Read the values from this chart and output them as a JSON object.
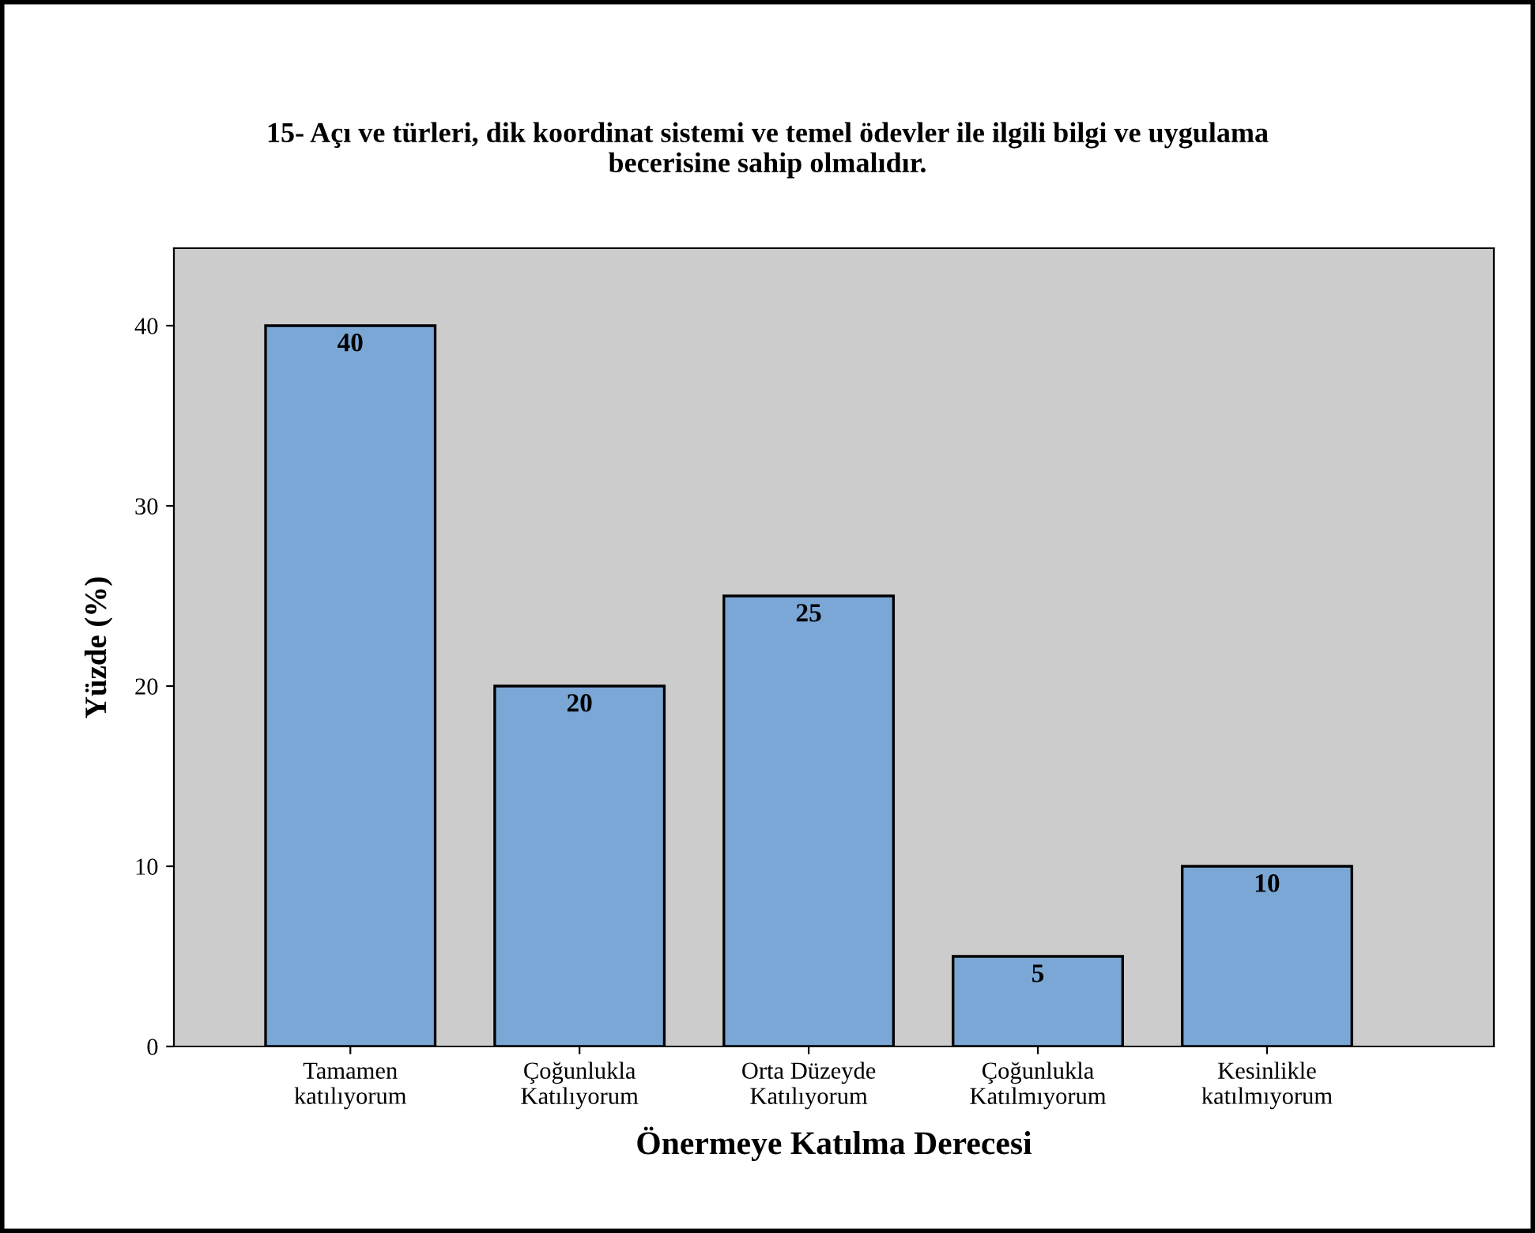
{
  "chart_data": {
    "type": "bar",
    "title": "15- Açı ve türleri, dik koordinat sistemi ve temel ödevler ile ilgili bilgi ve uygulama\nbecerisine sahip olmalıdır.",
    "xlabel": "Önermeye Katılma Derecesi",
    "ylabel": "Yüzde (%)",
    "categories": [
      "Tamamen\nkatılıyorum",
      "Çoğunlukla\nKatılıyorum",
      "Orta Düzeyde\nKatılıyorum",
      "Çoğunlukla\nKatılmıyorum",
      "Kesinlikle\nkatılmıyorum"
    ],
    "values": [
      40,
      20,
      25,
      5,
      10
    ],
    "color": "#7aa7d6",
    "data_labels": true,
    "ylim": [
      0,
      44.3
    ],
    "yticks": [
      0,
      10,
      20,
      30,
      40
    ],
    "grid": false,
    "legend": false
  }
}
